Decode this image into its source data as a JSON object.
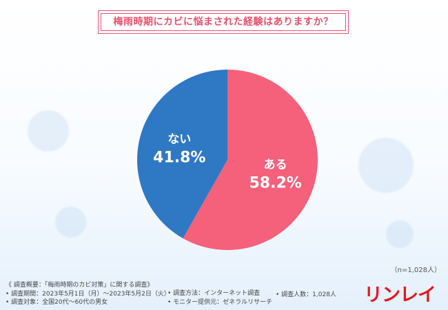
{
  "title": "梅雨時期にカビに悩まされた経験はありますか？",
  "chart_data": {
    "type": "pie",
    "slices": [
      {
        "label": "ある",
        "value": 58.2,
        "display": "58.2%",
        "color": "#f5607a"
      },
      {
        "label": "ない",
        "value": 41.8,
        "display": "41.8%",
        "color": "#2f78c4"
      }
    ],
    "start_angle_deg": 0,
    "direction": "clockwise"
  },
  "sample_note": "（n=1,028人）",
  "footer": {
    "overview": "《 調査概要：「梅雨時期のカビ対策」に関する調査》",
    "period": "• 調査期間：2023年5月1日（月）～2023年5月2日（火）",
    "target": "• 調査対象：全国20代～60代の男女",
    "method": "• 調査方法：インターネット調査",
    "monitor": "• モニター提供元：ゼネラルリサーチ",
    "count": "• 調査人数：1,028人"
  },
  "logo_text": "リンレイ"
}
